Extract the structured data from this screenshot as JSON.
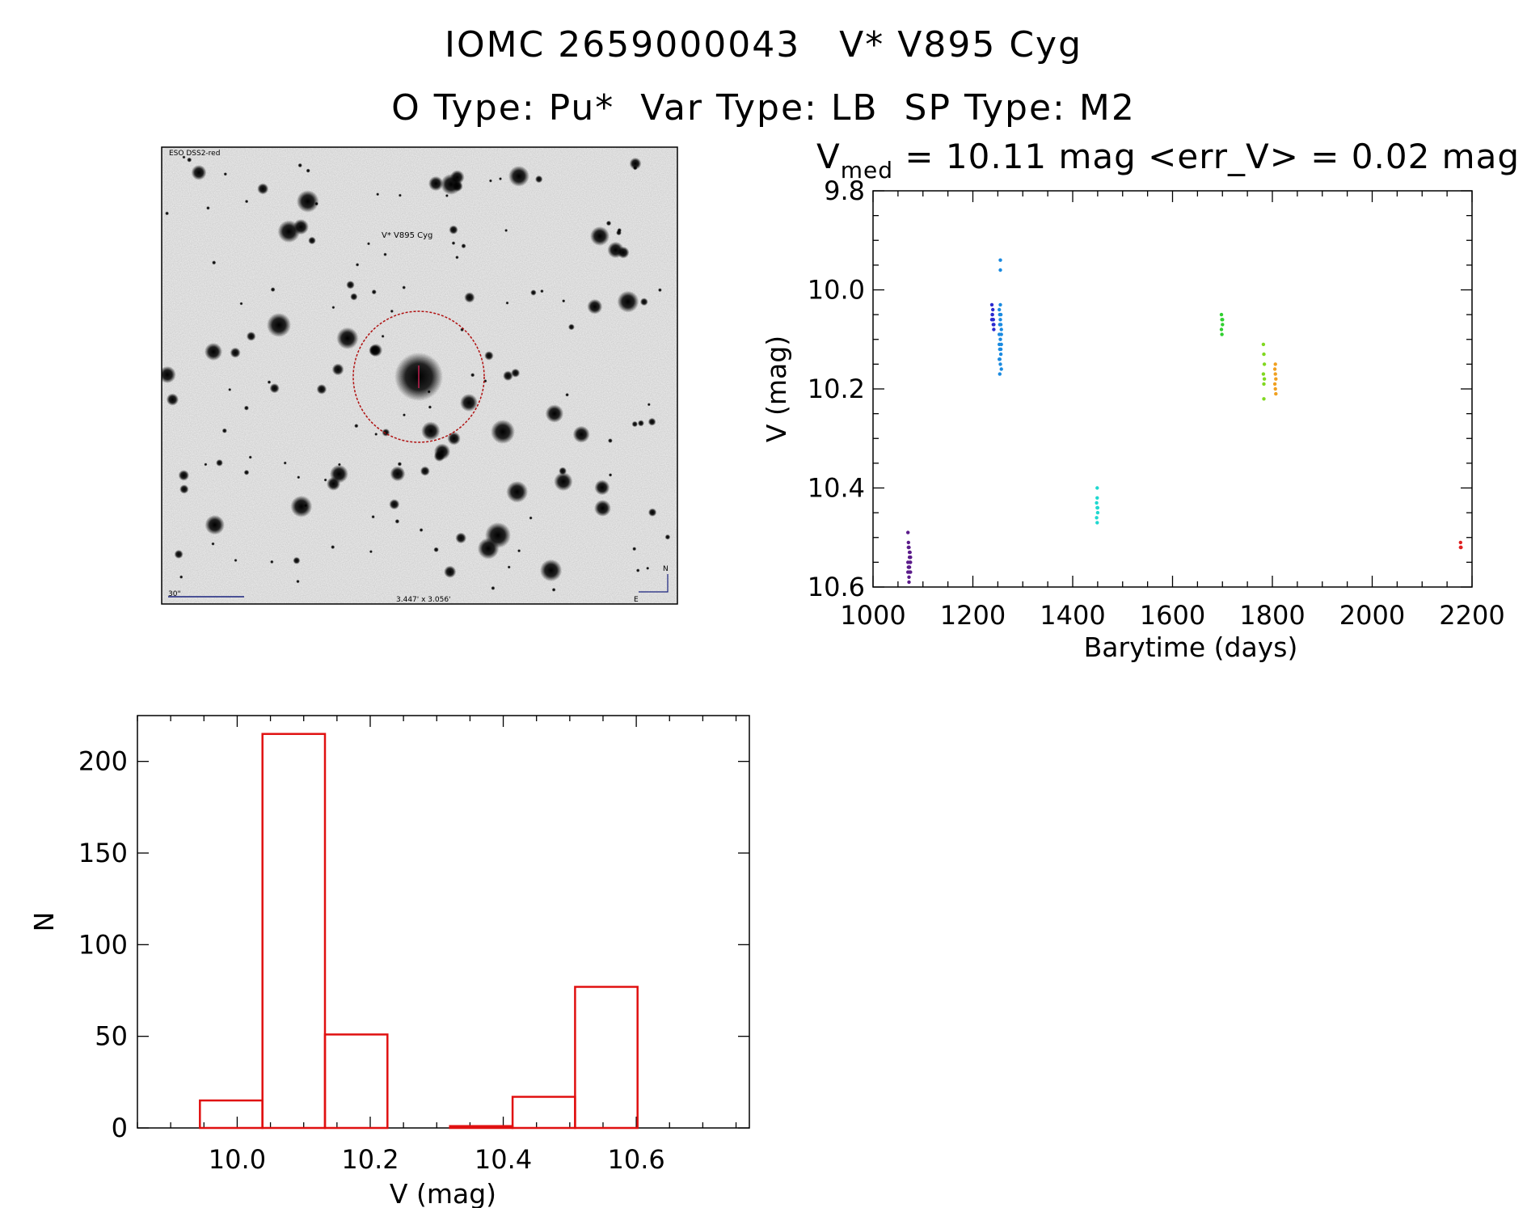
{
  "header": {
    "title_line1": "IOMC 2659000043   V* V895 Cyg",
    "title_line2": "O Type: Pu*  Var Type: LB  SP Type: M2"
  },
  "finder_chart": {
    "survey_label": "ESO DSS2-red",
    "target_label": "V* V895 Cyg",
    "scale_label": "30\"",
    "field_size_label": "3.447' x 3.056'",
    "compass_north": "N",
    "compass_east": "E"
  },
  "chart_data": [
    {
      "type": "scatter",
      "title_prefix": "V",
      "title_subscript": "med",
      "title_rest": " = 10.11 mag <err_V> = 0.02 mag",
      "xlabel": "Barytime (days)",
      "ylabel": "V (mag)",
      "xlim": [
        1000,
        2200
      ],
      "ylim": [
        9.8,
        10.6
      ],
      "y_inverted": true,
      "xticks": [
        1000,
        1200,
        1400,
        1600,
        1800,
        2000,
        2200
      ],
      "yticks": [
        9.8,
        10.0,
        10.2,
        10.4,
        10.6
      ],
      "ytick_labels": [
        "9.8",
        "10.0",
        "10.2",
        "10.4",
        "10.6"
      ],
      "series": [
        {
          "name": "group1",
          "color": "#5a1a8a",
          "x": [
            1070,
            1071,
            1072,
            1073,
            1074,
            1075,
            1070,
            1071,
            1072,
            1073,
            1074,
            1075,
            1070,
            1072,
            1074,
            1071,
            1073,
            1075,
            1072,
            1073
          ],
          "y": [
            10.49,
            10.51,
            10.52,
            10.53,
            10.54,
            10.55,
            10.55,
            10.56,
            10.56,
            10.57,
            10.55,
            10.54,
            10.57,
            10.58,
            10.53,
            10.52,
            10.56,
            10.57,
            10.59,
            10.54
          ]
        },
        {
          "name": "group2",
          "color": "#2a2ad0",
          "x": [
            1238,
            1239,
            1240,
            1241,
            1242,
            1238,
            1240,
            1242,
            1239,
            1241
          ],
          "y": [
            10.03,
            10.05,
            10.06,
            10.07,
            10.08,
            10.06,
            10.04,
            10.07,
            10.05,
            10.06
          ]
        },
        {
          "name": "group3",
          "color": "#1a8ae0",
          "x": [
            1253,
            1254,
            1255,
            1256,
            1257,
            1253,
            1255,
            1257,
            1254,
            1256,
            1253,
            1255,
            1257,
            1254,
            1256,
            1253,
            1255,
            1257,
            1254,
            1256,
            1255,
            1255,
            1254
          ],
          "y": [
            10.04,
            10.05,
            10.06,
            10.07,
            10.08,
            10.09,
            10.1,
            10.11,
            10.12,
            10.13,
            10.14,
            10.15,
            10.16,
            10.07,
            10.05,
            10.11,
            10.03,
            10.09,
            10.14,
            10.12,
            9.94,
            9.96,
            10.17
          ]
        },
        {
          "name": "group4",
          "color": "#20d8d0",
          "x": [
            1448,
            1449,
            1450,
            1448,
            1449,
            1450,
            1449,
            1449
          ],
          "y": [
            10.43,
            10.44,
            10.45,
            10.46,
            10.47,
            10.44,
            10.42,
            10.4
          ]
        },
        {
          "name": "group5",
          "color": "#30d030",
          "x": [
            1698,
            1699,
            1700,
            1698,
            1699,
            1700
          ],
          "y": [
            10.05,
            10.06,
            10.07,
            10.08,
            10.09,
            10.06
          ]
        },
        {
          "name": "group6",
          "color": "#80d820",
          "x": [
            1782,
            1783,
            1784,
            1782,
            1783,
            1784,
            1783
          ],
          "y": [
            10.11,
            10.13,
            10.15,
            10.17,
            10.19,
            10.18,
            10.22
          ]
        },
        {
          "name": "group7",
          "color": "#f0a020",
          "x": [
            1805,
            1806,
            1807,
            1805,
            1806,
            1807,
            1806
          ],
          "y": [
            10.16,
            10.17,
            10.18,
            10.19,
            10.2,
            10.21,
            10.15
          ]
        },
        {
          "name": "group8",
          "color": "#e02020",
          "x": [
            2177,
            2178,
            2177
          ],
          "y": [
            10.51,
            10.52,
            10.52
          ]
        }
      ]
    },
    {
      "type": "bar",
      "histogram": true,
      "color": "#e01010",
      "xlabel": "V (mag)",
      "ylabel": "N",
      "xlim": [
        9.85,
        10.77
      ],
      "ylim": [
        0,
        225
      ],
      "xticks": [
        10.0,
        10.2,
        10.4,
        10.6
      ],
      "xtick_labels": [
        "10.0",
        "10.2",
        "10.4",
        "10.6"
      ],
      "yticks": [
        0,
        50,
        100,
        150,
        200
      ],
      "bin_edges": [
        9.944,
        10.038,
        10.132,
        10.226,
        10.32,
        10.414,
        10.508,
        10.602
      ],
      "values": [
        15,
        215,
        51,
        0,
        1,
        17,
        77
      ]
    }
  ]
}
